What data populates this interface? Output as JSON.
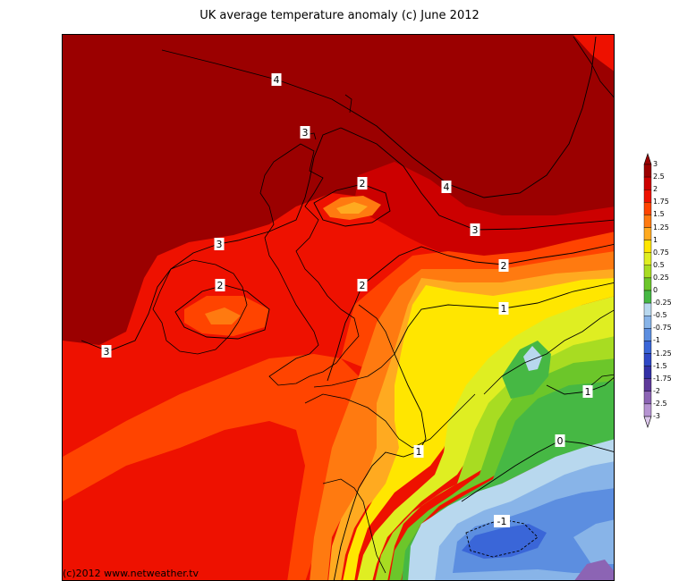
{
  "title": "UK average temperature anomaly (c) June 2012",
  "credit": "(c)2012 www.netweather.tv",
  "colors": {
    "c3": "#9b0000",
    "c25": "#cc0000",
    "c2": "#ee1100",
    "c175": "#ff4400",
    "c15": "#ff7a10",
    "c125": "#ffaa20",
    "c1": "#ffe600",
    "c075": "#dfee22",
    "c05": "#a8dc22",
    "c025": "#6cc62a",
    "c0": "#46b844",
    "cm025": "#b8d8ee",
    "cm05": "#88b4e8",
    "cm075": "#5c8ee0",
    "cm1": "#3a66d8",
    "cm125": "#2f48c6",
    "cm15": "#3330a6",
    "cm175": "#5e3a9a",
    "cm2": "#8c64b4",
    "cm25": "#b694d2",
    "cm3": "#dcc8ec"
  },
  "legend": {
    "ticks": [
      "3",
      "2.5",
      "2",
      "1.75",
      "1.5",
      "1.25",
      "1",
      "0.75",
      "0.5",
      "0.25",
      "0",
      "-0.25",
      "-0.5",
      "-0.75",
      "-1",
      "-1.25",
      "-1.5",
      "-1.75",
      "-2",
      "-2.5",
      "-3"
    ]
  },
  "contour_labels": [
    {
      "id": "c4a",
      "text": "4"
    },
    {
      "id": "c4b",
      "text": "4"
    },
    {
      "id": "c3a",
      "text": "3"
    },
    {
      "id": "c3b",
      "text": "3"
    },
    {
      "id": "c3c",
      "text": "3"
    },
    {
      "id": "c3d",
      "text": "3"
    },
    {
      "id": "c2a",
      "text": "2"
    },
    {
      "id": "c2b",
      "text": "2"
    },
    {
      "id": "c2c",
      "text": "2"
    },
    {
      "id": "c2d",
      "text": "2"
    },
    {
      "id": "c1a",
      "text": "1"
    },
    {
      "id": "c1b",
      "text": "1"
    },
    {
      "id": "c1c",
      "text": "1"
    },
    {
      "id": "c0a",
      "text": "0"
    },
    {
      "id": "cm1a",
      "text": "-1"
    }
  ]
}
